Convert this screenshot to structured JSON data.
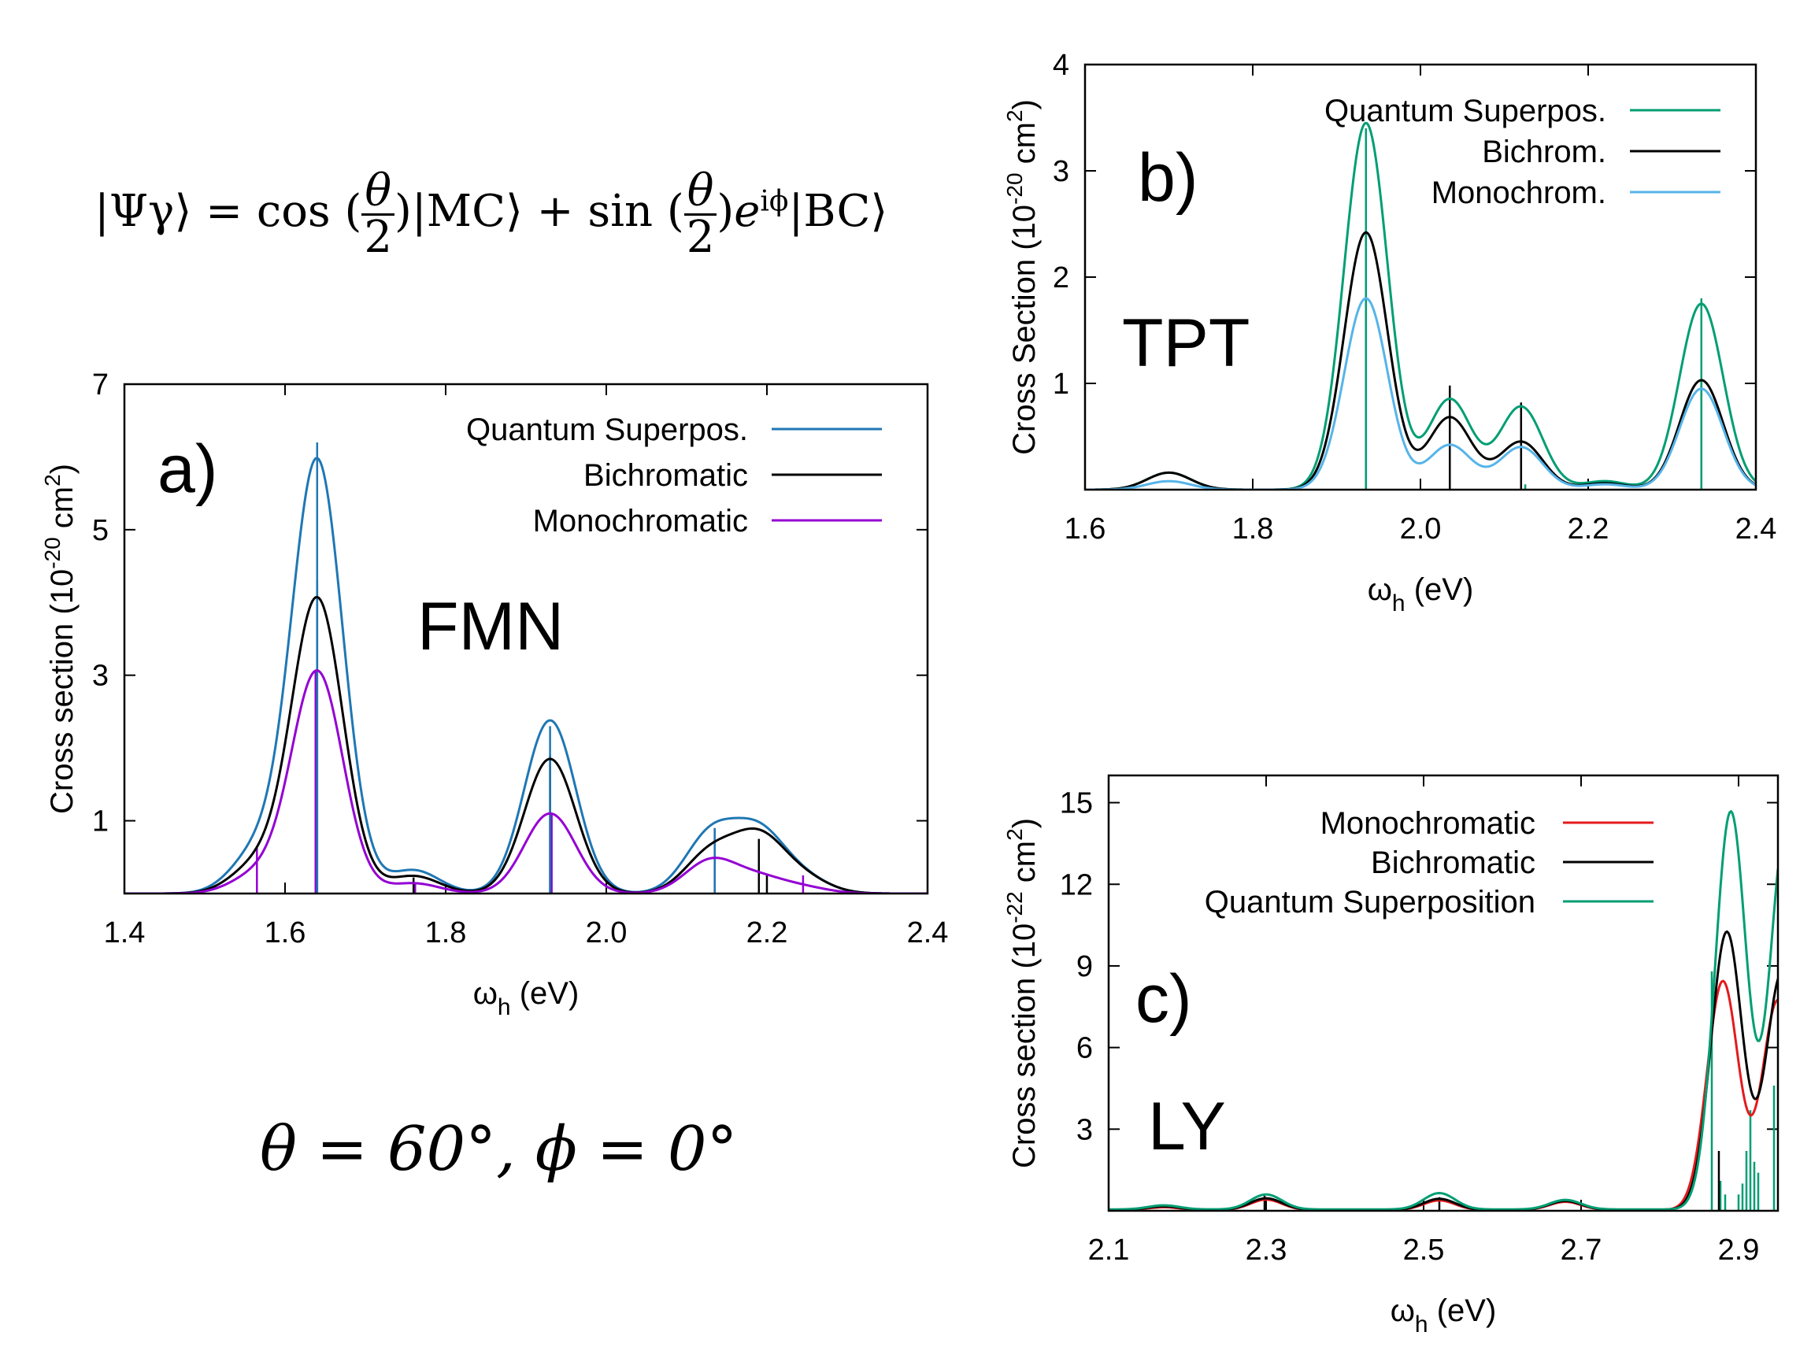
{
  "equations": {
    "state": {
      "lhs": "|Ψγ⟩ =",
      "cos": "cos",
      "theta": "θ",
      "two": "2",
      "mc": "|MC⟩ +",
      "sin": "sin",
      "exp": "e",
      "exp_sup": "iϕ",
      "bc": "|BC⟩"
    },
    "angles": "θ = 60°,  ϕ = 0°"
  },
  "colors": {
    "blue": "#1f77b4",
    "black": "#000000",
    "purple": "#9400d3",
    "green": "#009e73",
    "lightblue": "#56b4e9",
    "red": "#e41a1c"
  },
  "chart_data": [
    {
      "id": "a",
      "type": "line",
      "panel_label": "a)",
      "molecule": "FMN",
      "xlabel_main": "ω",
      "xlabel_sub": "h",
      "xlabel_unit": " (eV)",
      "ylabel_main": "Cross section (10",
      "ylabel_exp": "-20",
      "ylabel_mid": " cm",
      "ylabel_exp2": "2",
      "ylabel_end": ")",
      "xlim": [
        1.4,
        2.4
      ],
      "ylim": [
        0,
        7
      ],
      "xticks": [
        "1.4",
        "1.6",
        "1.8",
        "2.0",
        "2.2",
        "2.4"
      ],
      "xtick_values": [
        1.4,
        1.6,
        1.8,
        2.0,
        2.2,
        2.4
      ],
      "yticks": [
        "1",
        "3",
        "5",
        "7"
      ],
      "ytick_values": [
        1,
        3,
        5,
        7
      ],
      "sigma": 0.032,
      "legend": [
        "Quantum Superpos.",
        "Bichromatic",
        "Monochromatic"
      ],
      "series": [
        {
          "name": "Quantum Superpos.",
          "color": "blue",
          "peaks": [
            [
              1.565,
              0.55
            ],
            [
              1.64,
              5.95
            ],
            [
              1.76,
              0.32
            ],
            [
              1.93,
              2.38
            ],
            [
              2.13,
              0.8
            ],
            [
              2.19,
              0.8
            ],
            [
              2.245,
              0.2
            ]
          ]
        },
        {
          "name": "Bichromatic",
          "color": "black",
          "peaks": [
            [
              1.565,
              0.38
            ],
            [
              1.64,
              4.05
            ],
            [
              1.76,
              0.24
            ],
            [
              1.93,
              1.85
            ],
            [
              2.13,
              0.55
            ],
            [
              2.19,
              0.74
            ],
            [
              2.245,
              0.2
            ]
          ]
        },
        {
          "name": "Monochromatic",
          "color": "purple",
          "peaks": [
            [
              1.565,
              0.25
            ],
            [
              1.64,
              3.05
            ],
            [
              1.76,
              0.14
            ],
            [
              1.93,
              1.1
            ],
            [
              2.13,
              0.45
            ],
            [
              2.19,
              0.2
            ],
            [
              2.245,
              0.08
            ]
          ]
        }
      ],
      "sticks": [
        {
          "color": "purple",
          "points": [
            [
              1.565,
              0.65
            ],
            [
              1.638,
              3.05
            ],
            [
              1.762,
              0.15
            ],
            [
              1.932,
              1.1
            ],
            [
              2.135,
              0.9
            ],
            [
              2.245,
              0.25
            ]
          ]
        },
        {
          "color": "black",
          "points": [
            [
              1.64,
              4.3
            ],
            [
              1.76,
              0.22
            ],
            [
              1.93,
              1.9
            ],
            [
              2.19,
              0.75
            ],
            [
              2.2,
              0.25
            ]
          ]
        },
        {
          "color": "blue",
          "points": [
            [
              1.64,
              6.2
            ],
            [
              1.93,
              2.3
            ],
            [
              2.135,
              0.9
            ]
          ]
        }
      ]
    },
    {
      "id": "b",
      "type": "line",
      "panel_label": "b)",
      "molecule": "TPT",
      "xlabel_main": "ω",
      "xlabel_sub": "h",
      "xlabel_unit": " (eV)",
      "ylabel_main": "Cross Section (10",
      "ylabel_exp": "-20",
      "ylabel_mid": " cm",
      "ylabel_exp2": "2",
      "ylabel_end": ")",
      "xlim": [
        1.6,
        2.4
      ],
      "ylim": [
        0,
        4
      ],
      "xticks": [
        "1.6",
        "1.8",
        "2.0",
        "2.2",
        "2.4"
      ],
      "xtick_values": [
        1.6,
        1.8,
        2.0,
        2.2,
        2.4
      ],
      "yticks": [
        "1",
        "2",
        "3",
        "4"
      ],
      "ytick_values": [
        1,
        2,
        3,
        4
      ],
      "sigma": 0.026,
      "legend": [
        "Quantum Superpos.",
        "Bichrom.",
        "Monochrom."
      ],
      "series": [
        {
          "name": "Quantum Superpos.",
          "color": "green",
          "peaks": [
            [
              1.7,
              0.16
            ],
            [
              1.935,
              3.45
            ],
            [
              2.035,
              0.85
            ],
            [
              2.12,
              0.78
            ],
            [
              2.22,
              0.08
            ],
            [
              2.335,
              1.75
            ]
          ]
        },
        {
          "name": "Bichrom.",
          "color": "black",
          "peaks": [
            [
              1.7,
              0.16
            ],
            [
              1.935,
              2.42
            ],
            [
              2.035,
              0.68
            ],
            [
              2.12,
              0.45
            ],
            [
              2.22,
              0.06
            ],
            [
              2.335,
              1.03
            ]
          ]
        },
        {
          "name": "Monochrom.",
          "color": "lightblue",
          "peaks": [
            [
              1.7,
              0.08
            ],
            [
              1.935,
              1.8
            ],
            [
              2.035,
              0.42
            ],
            [
              2.12,
              0.4
            ],
            [
              2.22,
              0.05
            ],
            [
              2.335,
              0.95
            ]
          ]
        }
      ],
      "sticks": [
        {
          "color": "lightblue",
          "points": [
            [
              1.935,
              1.8
            ],
            [
              2.035,
              0.5
            ],
            [
              2.12,
              0.45
            ],
            [
              2.335,
              0.95
            ]
          ]
        },
        {
          "color": "black",
          "points": [
            [
              1.935,
              2.45
            ],
            [
              2.035,
              0.98
            ],
            [
              2.12,
              0.82
            ],
            [
              2.335,
              1.05
            ]
          ]
        },
        {
          "color": "green",
          "points": [
            [
              1.935,
              3.4
            ],
            [
              2.335,
              1.8
            ],
            [
              2.125,
              0.05
            ]
          ]
        }
      ]
    },
    {
      "id": "c",
      "type": "line",
      "panel_label": "c)",
      "molecule": "LY",
      "xlabel_main": "ω",
      "xlabel_sub": "h",
      "xlabel_unit": " (eV)",
      "ylabel_main": "Cross section (10",
      "ylabel_exp": "-22",
      "ylabel_mid": " cm",
      "ylabel_exp2": "2",
      "ylabel_end": ")",
      "xlim": [
        2.1,
        2.95
      ],
      "ylim": [
        0,
        16
      ],
      "xticks": [
        "2.1",
        "2.3",
        "2.5",
        "2.7",
        "2.9"
      ],
      "xtick_values": [
        2.1,
        2.3,
        2.5,
        2.7,
        2.9
      ],
      "yticks": [
        "3",
        "6",
        "9",
        "12",
        "15"
      ],
      "ytick_values": [
        3,
        6,
        9,
        12,
        15
      ],
      "sigma": 0.02,
      "legend": [
        "Monochromatic",
        "Bichromatic",
        "Quantum Superposition"
      ],
      "series": [
        {
          "name": "Monochromatic",
          "color": "red",
          "base": 0.03,
          "peaks": [
            [
              2.17,
              0.1
            ],
            [
              2.3,
              0.38
            ],
            [
              2.52,
              0.35
            ],
            [
              2.68,
              0.3
            ],
            [
              2.88,
              8.4
            ],
            [
              2.95,
              7.7
            ]
          ]
        },
        {
          "name": "Bichromatic",
          "color": "black",
          "base": 0.04,
          "peaks": [
            [
              2.17,
              0.12
            ],
            [
              2.3,
              0.42
            ],
            [
              2.52,
              0.4
            ],
            [
              2.68,
              0.32
            ],
            [
              2.885,
              10.2
            ],
            [
              2.955,
              8.7
            ]
          ]
        },
        {
          "name": "Quantum Superposition",
          "color": "green",
          "base": 0.05,
          "peaks": [
            [
              2.17,
              0.15
            ],
            [
              2.3,
              0.55
            ],
            [
              2.52,
              0.6
            ],
            [
              2.68,
              0.35
            ],
            [
              2.89,
              14.6
            ],
            [
              2.96,
              14.0
            ]
          ]
        }
      ],
      "sticks": [
        {
          "color": "green",
          "points": [
            [
              2.866,
              8.8
            ],
            [
              2.877,
              1.1
            ],
            [
              2.883,
              0.6
            ],
            [
              2.9,
              0.6
            ],
            [
              2.905,
              1.0
            ],
            [
              2.91,
              2.2
            ],
            [
              2.915,
              3.7
            ],
            [
              2.92,
              1.8
            ],
            [
              2.925,
              1.4
            ],
            [
              2.945,
              4.6
            ]
          ]
        },
        {
          "color": "black",
          "points": [
            [
              2.875,
              2.2
            ],
            [
              2.298,
              0.55
            ],
            [
              2.52,
              0.5
            ]
          ]
        }
      ]
    }
  ]
}
